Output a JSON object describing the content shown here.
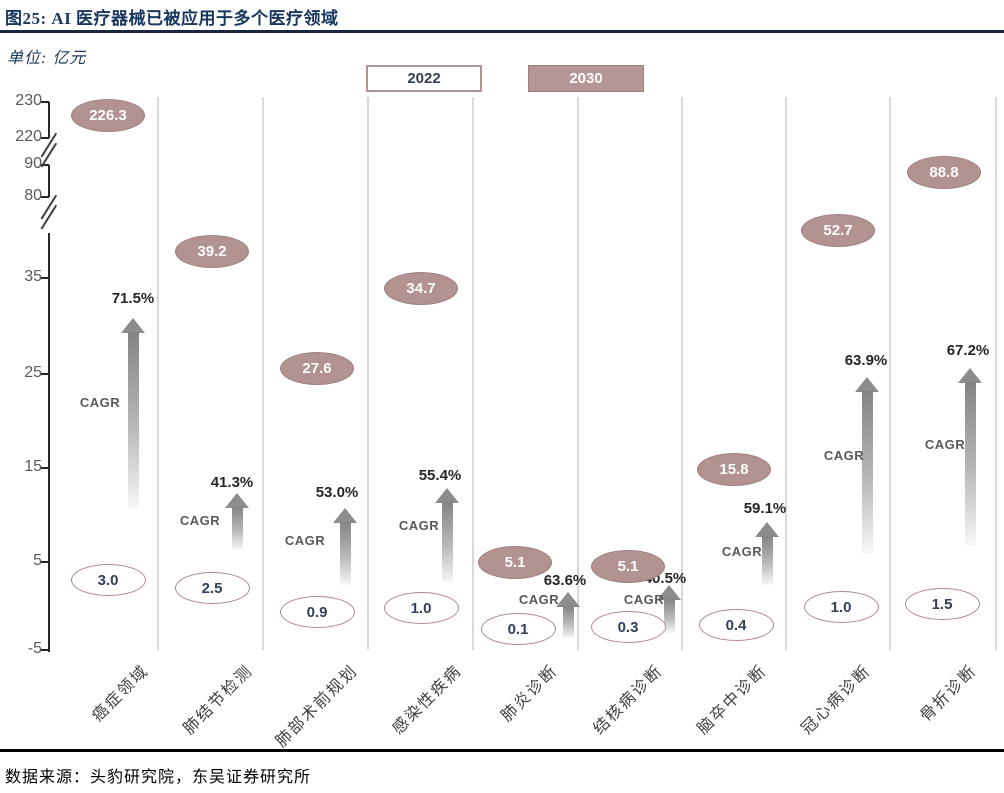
{
  "figure": {
    "title": "图25:  AI 医疗器械已被应用于多个医疗领域",
    "unit_label": "单位: 亿元",
    "source": "数据来源：头豹研究院，东吴证券研究所"
  },
  "legend": {
    "year_2022": "2022",
    "year_2030": "2030"
  },
  "chart_data": {
    "type": "scatter",
    "subtype": "dumbbell-ellipse-comparison",
    "title": "AI 医疗器械已被应用于多个医疗领域",
    "unit": "亿元",
    "categories": [
      "癌症领域",
      "肺结节检测",
      "肺部术前规划",
      "感染性疾病",
      "肺炎诊断",
      "结核病诊断",
      "脑卒中诊断",
      "冠心病诊断",
      "骨折诊断"
    ],
    "series": [
      {
        "name": "2022",
        "values": [
          3.0,
          2.5,
          0.9,
          1.0,
          0.1,
          0.3,
          0.4,
          1.0,
          1.5
        ],
        "display": [
          "3.0",
          "2.5",
          "0.9",
          "1.0",
          "0.1",
          "0.3",
          "0.4",
          "1.0",
          "1.5"
        ],
        "style": "outline-ellipse"
      },
      {
        "name": "2030",
        "values": [
          226.3,
          39.2,
          27.6,
          34.7,
          5.1,
          5.1,
          15.8,
          52.7,
          88.8
        ],
        "display": [
          "226.3",
          "39.2",
          "27.6",
          "34.7",
          "5.1",
          "5.1",
          "15.8",
          "52.7",
          "88.8"
        ],
        "style": "filled-ellipse"
      }
    ],
    "cagr_prefix": "CAGR",
    "cagr_labels": [
      "71.5%",
      "41.3%",
      "53.0%",
      "55.4%",
      "63.6%",
      "40.5%",
      "59.1%",
      "63.9%",
      "67.2%"
    ],
    "y_ticks": [
      "230",
      "220",
      "90",
      "80",
      "35",
      "25",
      "15",
      "5",
      "-5"
    ],
    "ylim": [
      -5,
      230
    ],
    "axis_breaks": [
      [
        35,
        80
      ],
      [
        90,
        220
      ]
    ],
    "grid": "vertical-category-separators",
    "legend_position": "top-center",
    "colors": {
      "filled_ellipse": "#b29392",
      "ellipse_border": "#9b7f7e",
      "outline_ellipse_border": "#ab8a89",
      "value_text_dark": "#33405a",
      "value_text_light": "#fdfdfd",
      "cagr_pct_text": "#262626",
      "cagr_word_text": "#595959",
      "arrow_gray": "#8c8c8c",
      "accent_navy": "#17375e",
      "tick_gray": "#595959",
      "gridline_gray": "#d9d9d9"
    }
  }
}
